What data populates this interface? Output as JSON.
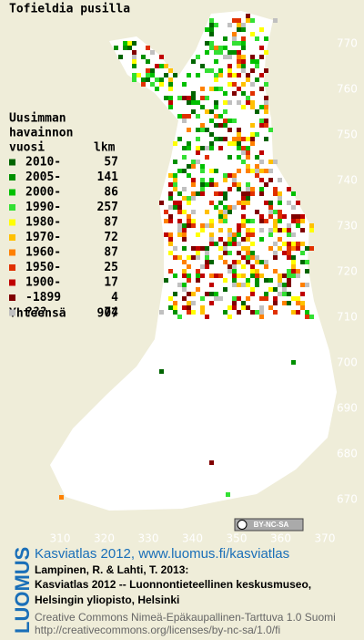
{
  "title": "Tofieldia pusilla",
  "legend": {
    "heading": [
      "Uusimman",
      "havainnon",
      "vuosi"
    ],
    "count_header": "lkm",
    "items": [
      {
        "label": "2010-",
        "count": 57,
        "color": "#006400"
      },
      {
        "label": "2005-",
        "count": 141,
        "color": "#009000"
      },
      {
        "label": "2000-",
        "count": 86,
        "color": "#00c000"
      },
      {
        "label": "1990-",
        "count": 257,
        "color": "#33e033"
      },
      {
        "label": "1980-",
        "count": 87,
        "color": "#ffff00"
      },
      {
        "label": "1970-",
        "count": 72,
        "color": "#ffc000"
      },
      {
        "label": "1960-",
        "count": 87,
        "color": "#ff8000"
      },
      {
        "label": "1950-",
        "count": 25,
        "color": "#e03000"
      },
      {
        "label": "1900-",
        "count": 17,
        "color": "#c00000"
      },
      {
        "label": "-1899",
        "count": 4,
        "color": "#800000"
      },
      {
        "label": "???",
        "count": 74,
        "color": "#c0c0c0"
      }
    ],
    "total_label": "Yhteensä",
    "total": 907
  },
  "grid": {
    "y_labels": [
      770,
      760,
      750,
      740,
      730,
      720,
      710,
      700,
      690,
      680,
      670
    ],
    "x_labels": [
      310,
      320,
      330,
      340,
      350,
      360,
      370
    ]
  },
  "license_badge": "BY-NC-SA",
  "logo": "LUOMUS",
  "footer": {
    "link": "Kasviatlas 2012, www.luomus.fi/kasviatlas",
    "citation": [
      "Lampinen, R. & Lahti, T. 2013:",
      "Kasviatlas 2012 -- Luonnontieteellinen keskusmuseo,",
      "Helsingin yliopisto, Helsinki"
    ],
    "license": [
      "Creative Commons Nimeä-Epäkaupallinen-Tarttuva 1.0 Suomi",
      "http://creativecommons.org/licenses/by-nc-sa/1.0/fi"
    ]
  }
}
